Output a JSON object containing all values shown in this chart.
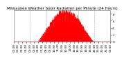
{
  "title": "Milwaukee Weather Solar Radiation per Minute (24 Hours)",
  "bar_color": "#ff0000",
  "background_color": "#ffffff",
  "plot_bg_color": "#ffffff",
  "grid_color": "#aaaaaa",
  "n_points": 1440,
  "peak_hour": 13.0,
  "peak_value": 800,
  "sunrise_min": 350,
  "sunset_min": 1190,
  "ylim": [
    0,
    900
  ],
  "xlim": [
    0,
    1440
  ],
  "grid_lines_x": [
    240,
    480,
    720,
    960,
    1200
  ],
  "title_fontsize": 4.0,
  "tick_fontsize": 3.0,
  "ylabel_right": [
    "0",
    "2",
    "4",
    "6",
    "8"
  ],
  "ylabel_right_vals": [
    0,
    200,
    400,
    600,
    800
  ]
}
